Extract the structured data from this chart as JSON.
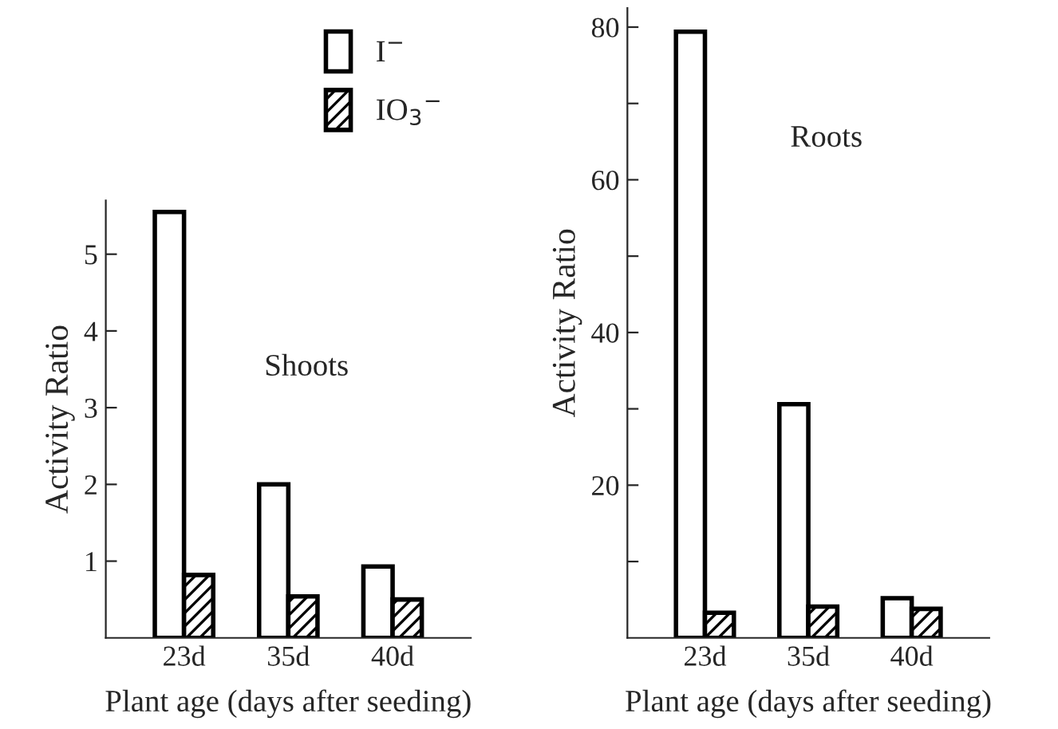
{
  "chart_data": [
    {
      "type": "bar",
      "categories": [
        "23d",
        "35d",
        "40d"
      ],
      "xlabel": "Plant age (days after seeding)",
      "ylabel": "Activity Ratio",
      "ylim": [
        0,
        5.7
      ],
      "yticks": [
        1,
        2,
        3,
        4,
        5
      ],
      "legend": "top right",
      "annotations": [
        "Shoots"
      ],
      "series": [
        {
          "name": "I$^{−}$",
          "color": "#ffffff",
          "values": [
            5.55,
            2.0,
            0.93
          ]
        },
        {
          "name": "IO$_{3}$$^{−}$",
          "color": "#000000",
          "values": [
            0.82,
            0.54,
            0.5
          ]
        }
      ]
    },
    {
      "type": "bar",
      "categories": [
        "23d",
        "35d",
        "40d"
      ],
      "xlabel": "Plant age (days after seeding)",
      "ylabel": "Activity Ratio",
      "ylim": [
        0,
        82.5
      ],
      "yticks": [
        {
          "value": 10,
          "label": null
        },
        20,
        {
          "value": 30,
          "label": null
        },
        40,
        {
          "value": 50,
          "label": null
        },
        60,
        {
          "value": 70,
          "label": null
        },
        80
      ],
      "annotations": [
        "Roots"
      ],
      "series": [
        {
          "color": "#ffffff",
          "values": [
            79.4,
            30.6,
            5.2
          ]
        },
        {
          "color": "#000000",
          "values": [
            3.3,
            4.1,
            3.8
          ]
        }
      ]
    }
  ]
}
